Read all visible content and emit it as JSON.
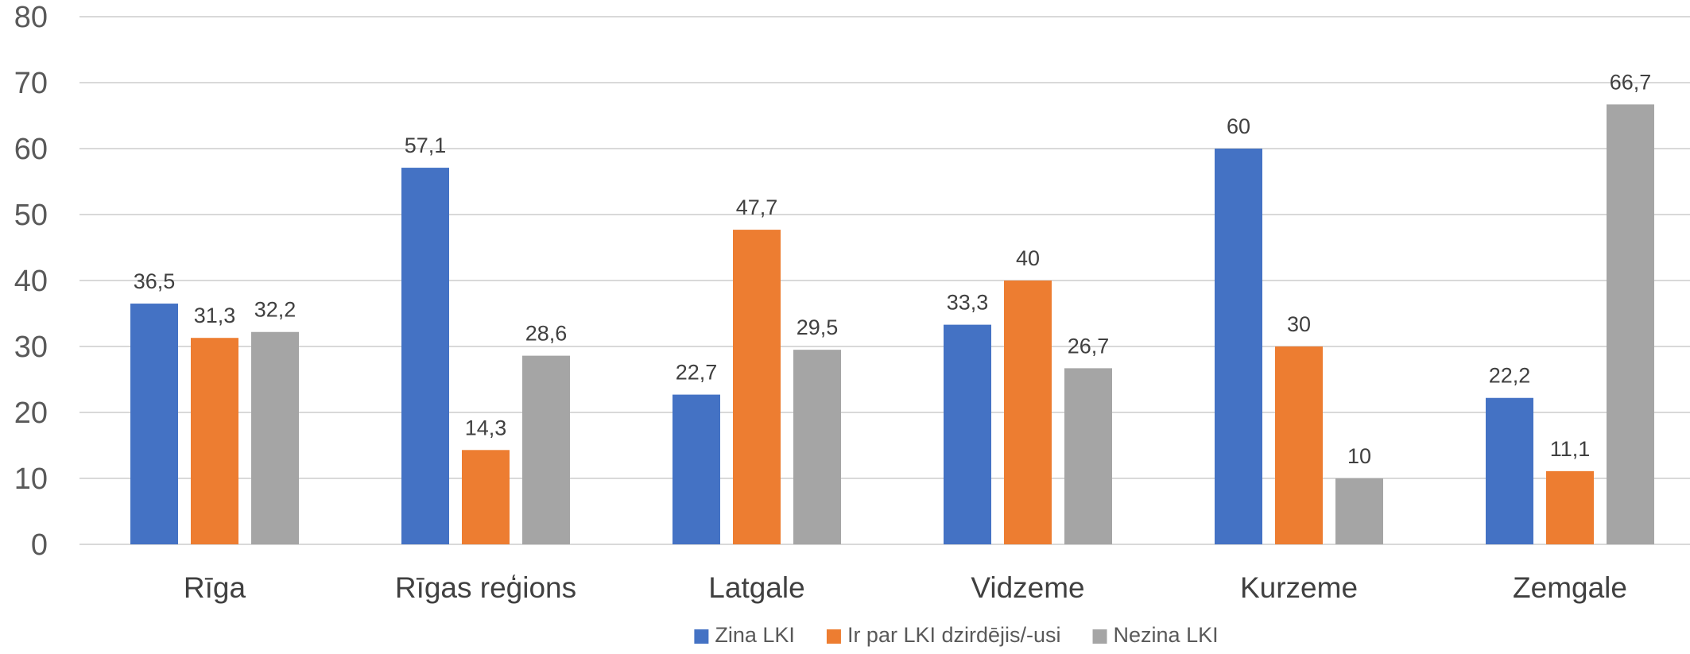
{
  "chart_data": {
    "type": "bar",
    "title": "",
    "xlabel": "",
    "ylabel": "",
    "ylim": [
      0,
      80
    ],
    "yticks": [
      0,
      10,
      20,
      30,
      40,
      50,
      60,
      70,
      80
    ],
    "grid": true,
    "legend_position": "bottom",
    "categories": [
      "Rīga",
      "Rīgas reģions",
      "Latgale",
      "Vidzeme",
      "Kurzeme",
      "Zemgale"
    ],
    "series": [
      {
        "name": "Zina LKI",
        "color": "#4472c4",
        "values": [
          36.5,
          57.1,
          22.7,
          33.3,
          60,
          22.2
        ],
        "labels": [
          "36,5",
          "57,1",
          "22,7",
          "33,3",
          "60",
          "22,2"
        ]
      },
      {
        "name": "Ir par LKI dzirdējis/-usi",
        "color": "#ed7d31",
        "values": [
          31.3,
          14.3,
          47.7,
          40,
          30,
          11.1
        ],
        "labels": [
          "31,3",
          "14,3",
          "47,7",
          "40",
          "30",
          "11,1"
        ]
      },
      {
        "name": "Nezina LKI",
        "color": "#a5a5a5",
        "values": [
          32.2,
          28.6,
          29.5,
          26.7,
          10,
          66.7
        ],
        "labels": [
          "32,2",
          "28,6",
          "29,5",
          "26,7",
          "10",
          "66,7"
        ]
      }
    ]
  }
}
